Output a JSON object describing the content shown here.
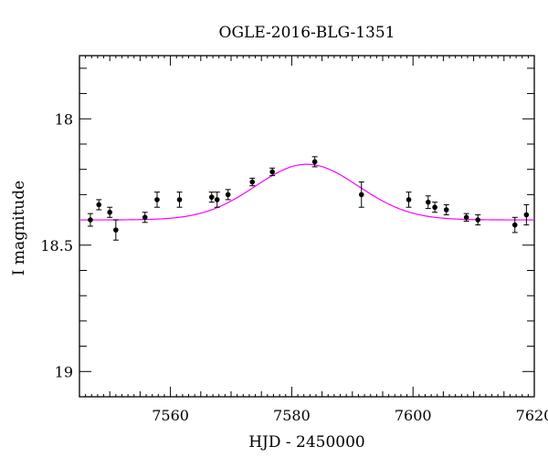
{
  "chart_data": {
    "type": "scatter",
    "title": "OGLE-2016-BLG-1351",
    "xlabel": "HJD - 2450000",
    "ylabel": "I magnitude",
    "xlim": [
      7545,
      7620
    ],
    "ylim": [
      19.1,
      17.75
    ],
    "y_inverted": true,
    "x_ticks": [
      7560,
      7580,
      7600,
      7620
    ],
    "x_tick_labels": [
      "7560",
      "7580",
      "7600",
      "7620"
    ],
    "y_ticks": [
      18,
      18.5,
      19
    ],
    "y_tick_labels": [
      "18",
      "18.5",
      "19"
    ],
    "grid": false,
    "colors": {
      "model": "#ff00ff",
      "points": "#000000"
    },
    "series": [
      {
        "type": "scatter_errorbar",
        "points": [
          {
            "x": 7546.8,
            "y": 18.4,
            "err": 0.025
          },
          {
            "x": 7548.2,
            "y": 18.34,
            "err": 0.02
          },
          {
            "x": 7550.0,
            "y": 18.37,
            "err": 0.02
          },
          {
            "x": 7551.0,
            "y": 18.44,
            "err": 0.04
          },
          {
            "x": 7555.8,
            "y": 18.39,
            "err": 0.02
          },
          {
            "x": 7557.8,
            "y": 18.32,
            "err": 0.03
          },
          {
            "x": 7561.5,
            "y": 18.32,
            "err": 0.03
          },
          {
            "x": 7566.8,
            "y": 18.31,
            "err": 0.02
          },
          {
            "x": 7567.7,
            "y": 18.32,
            "err": 0.03
          },
          {
            "x": 7569.5,
            "y": 18.3,
            "err": 0.02
          },
          {
            "x": 7573.5,
            "y": 18.25,
            "err": 0.015
          },
          {
            "x": 7576.8,
            "y": 18.21,
            "err": 0.015
          },
          {
            "x": 7583.8,
            "y": 18.17,
            "err": 0.02
          },
          {
            "x": 7591.5,
            "y": 18.3,
            "err": 0.05
          },
          {
            "x": 7599.3,
            "y": 18.32,
            "err": 0.03
          },
          {
            "x": 7602.5,
            "y": 18.33,
            "err": 0.025
          },
          {
            "x": 7603.6,
            "y": 18.35,
            "err": 0.02
          },
          {
            "x": 7605.5,
            "y": 18.36,
            "err": 0.02
          },
          {
            "x": 7608.8,
            "y": 18.39,
            "err": 0.015
          },
          {
            "x": 7610.7,
            "y": 18.4,
            "err": 0.02
          },
          {
            "x": 7616.8,
            "y": 18.42,
            "err": 0.03
          },
          {
            "x": 7618.7,
            "y": 18.38,
            "err": 0.04
          }
        ]
      },
      {
        "type": "line",
        "model": {
          "baseline": 18.4,
          "peak_mag": 18.18,
          "t0": 7582.5,
          "tE": 8.5
        }
      }
    ]
  }
}
